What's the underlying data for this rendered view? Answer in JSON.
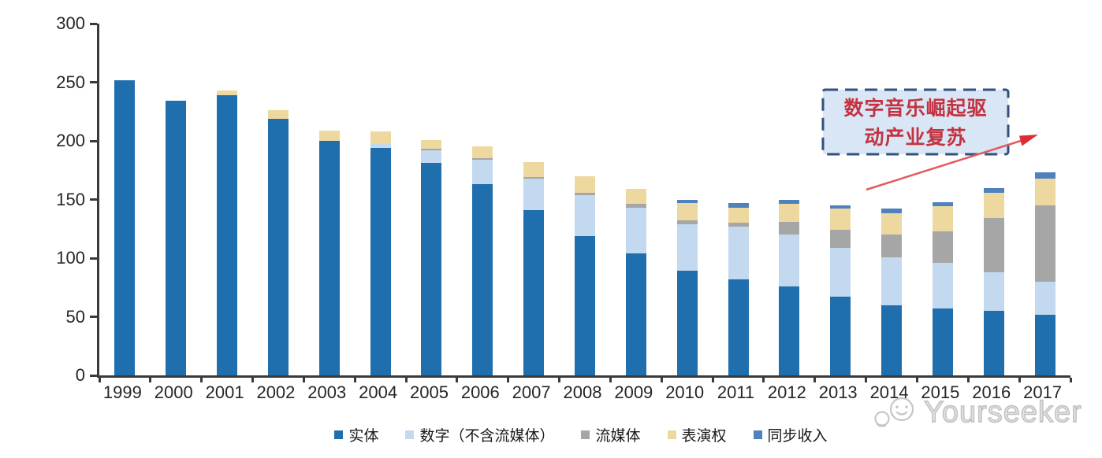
{
  "chart_data": {
    "type": "bar",
    "stacked": true,
    "categories": [
      "1999",
      "2000",
      "2001",
      "2002",
      "2003",
      "2004",
      "2005",
      "2006",
      "2007",
      "2008",
      "2009",
      "2010",
      "2011",
      "2012",
      "2013",
      "2014",
      "2015",
      "2016",
      "2017"
    ],
    "series": [
      {
        "name": "实体",
        "color": "#1F6EAE",
        "values": [
          252,
          234,
          239,
          219,
          200,
          194,
          181,
          163,
          141,
          119,
          104,
          89,
          82,
          76,
          67,
          60,
          57,
          55,
          52
        ]
      },
      {
        "name": "数字（不含流媒体）",
        "color": "#C3D9EF",
        "values": [
          0,
          0,
          0,
          0,
          0,
          3,
          11,
          21,
          27,
          35,
          39,
          40,
          45,
          44,
          42,
          41,
          39,
          33,
          28
        ]
      },
      {
        "name": "流媒体",
        "color": "#A6A6A6",
        "values": [
          0,
          0,
          0,
          0,
          0,
          0,
          1,
          1,
          1,
          2,
          3,
          3,
          3,
          11,
          15,
          19,
          27,
          46,
          65
        ]
      },
      {
        "name": "表演权",
        "color": "#EDD9A0",
        "values": [
          0,
          0,
          4,
          7,
          9,
          11,
          8,
          10,
          13,
          14,
          13,
          15,
          13,
          15,
          18,
          18,
          21,
          22,
          23
        ]
      },
      {
        "name": "同步收入",
        "color": "#4E81BD",
        "values": [
          0,
          0,
          0,
          0,
          0,
          0,
          0,
          0,
          0,
          0,
          0,
          3,
          4,
          4,
          3,
          4,
          4,
          4,
          5
        ]
      }
    ],
    "ylim": [
      0,
      300
    ],
    "yticks": [
      0,
      50,
      100,
      150,
      200,
      250,
      300
    ],
    "grid": false,
    "legend_position": "bottom"
  },
  "annotation": {
    "line1": "数字音乐崛起驱",
    "line2": "动产业复苏",
    "text_color": "#c4323f",
    "box_fill": "#d8e6f6",
    "box_border": "#32517e",
    "arrow_color": "#e04048"
  },
  "axis": {
    "line_color": "#3a3a3a",
    "label_color": "#262626"
  },
  "watermark": {
    "text": "Yourseeker",
    "color": "#c4c4c4"
  }
}
